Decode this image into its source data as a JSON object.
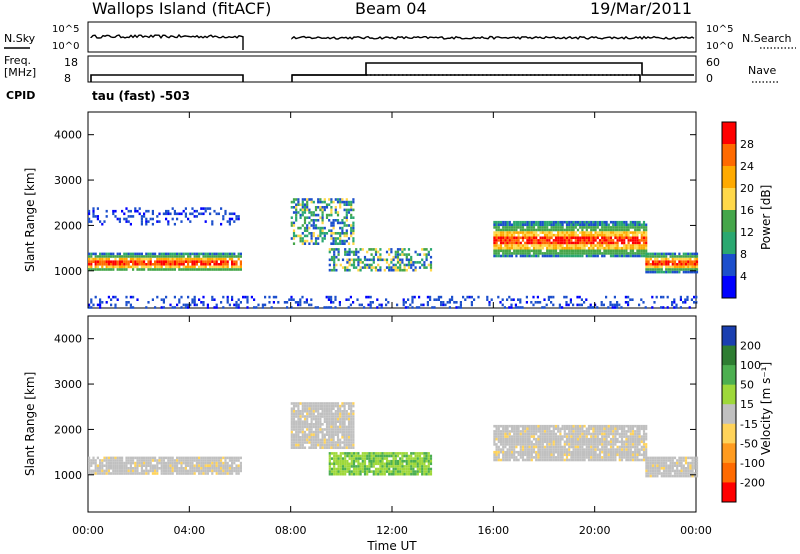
{
  "header": {
    "station": "Wallops Island (fitACF)",
    "beam": "Beam 04",
    "date": "19/Mar/2011"
  },
  "noise_panel": {
    "left_label": "N.Sky",
    "right_label": "N.Search",
    "left_ticks": [
      "10^5",
      "10^0"
    ],
    "right_ticks": [
      "10^5",
      "10^0"
    ]
  },
  "freq_panel": {
    "left_label_1": "Freq.",
    "left_label_2": "[MHz]",
    "right_label": "Nave",
    "left_ticks": [
      "18",
      "8"
    ],
    "right_ticks": [
      "60",
      "0"
    ]
  },
  "cpid": {
    "label": "CPID",
    "text": "tau (fast) -503"
  },
  "chart_data": [
    {
      "type": "heatmap",
      "ylabel": "Slant Range [km]",
      "ylim": [
        180,
        4500
      ],
      "yticks": [
        1000,
        2000,
        3000,
        4000
      ],
      "colorbar": {
        "label": "Power [dB]",
        "ticks": [
          "28",
          "24",
          "20",
          "16",
          "12",
          "8",
          "4"
        ],
        "colors": [
          "#ff0000",
          "#ff6a00",
          "#ffaa00",
          "#ffd84a",
          "#45a64a",
          "#2aa870",
          "#1c4fcc",
          "#0000ff"
        ]
      },
      "bands": [
        {
          "t0": 0.0,
          "t1": 6.0,
          "r0": 1000,
          "r1": 1400,
          "level": "high"
        },
        {
          "t0": 0.0,
          "t1": 6.0,
          "r0": 2050,
          "r1": 2400,
          "level": "low"
        },
        {
          "t0": 8.0,
          "t1": 10.5,
          "r0": 1600,
          "r1": 2600,
          "level": "mid"
        },
        {
          "t0": 9.5,
          "t1": 13.5,
          "r0": 1000,
          "r1": 1500,
          "level": "mid"
        },
        {
          "t0": 16.0,
          "t1": 22.0,
          "r0": 1300,
          "r1": 2100,
          "level": "high"
        },
        {
          "t0": 22.0,
          "t1": 24.0,
          "r0": 950,
          "r1": 1400,
          "level": "high"
        },
        {
          "t0": 0.0,
          "t1": 24.0,
          "r0": 180,
          "r1": 450,
          "level": "low"
        }
      ]
    },
    {
      "type": "heatmap",
      "ylabel": "Slant Range [km]",
      "xlabel": "Time UT",
      "ylim": [
        180,
        4500
      ],
      "yticks": [
        1000,
        2000,
        3000,
        4000
      ],
      "xticks": [
        "00:00",
        "04:00",
        "08:00",
        "12:00",
        "16:00",
        "20:00",
        "00:00"
      ],
      "colorbar": {
        "label": "Velocity [m s⁻¹]",
        "ticks": [
          "200",
          "100",
          "50",
          "15",
          "-15",
          "-50",
          "-100",
          "-200"
        ],
        "colors": [
          "#1a3fb0",
          "#2e7d32",
          "#4caf50",
          "#9ed83a",
          "#c0c0c0",
          "#ffd35a",
          "#ff9b1f",
          "#ff6a00",
          "#ff0000"
        ]
      },
      "bands": [
        {
          "t0": 0.0,
          "t1": 6.0,
          "r0": 1000,
          "r1": 1400,
          "level": "ground"
        },
        {
          "t0": 16.0,
          "t1": 22.0,
          "r0": 1300,
          "r1": 2100,
          "level": "ground"
        },
        {
          "t0": 22.0,
          "t1": 24.0,
          "r0": 950,
          "r1": 1400,
          "level": "ground"
        },
        {
          "t0": 8.0,
          "t1": 10.5,
          "r0": 1600,
          "r1": 2600,
          "level": "ground"
        },
        {
          "t0": 9.5,
          "t1": 13.5,
          "r0": 1000,
          "r1": 1500,
          "level": "positive"
        }
      ]
    }
  ]
}
